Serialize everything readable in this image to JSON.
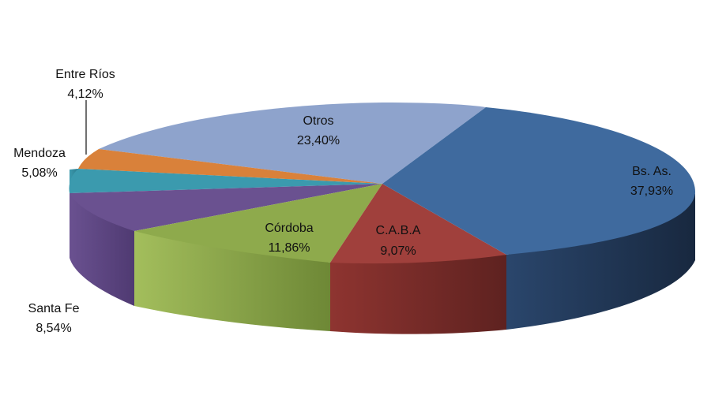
{
  "chart_data": {
    "type": "pie",
    "title": "",
    "style": "3d",
    "categories": [
      "Bs. As.",
      "C.A.B.A",
      "Córdoba",
      "Santa Fe",
      "Mendoza",
      "Entre Ríos",
      "Otros"
    ],
    "values": [
      37.93,
      9.07,
      11.86,
      8.54,
      5.08,
      4.12,
      23.4
    ],
    "value_labels": [
      "37,93%",
      "9,07%",
      "11,86%",
      "8,54%",
      "5,08%",
      "4,12%",
      "23,40%"
    ],
    "colors": [
      "#3F6A9E",
      "#A0403C",
      "#8EAA4C",
      "#6A5190",
      "#3B9AAE",
      "#D9813A",
      "#8EA3CC"
    ],
    "legend": "none"
  }
}
